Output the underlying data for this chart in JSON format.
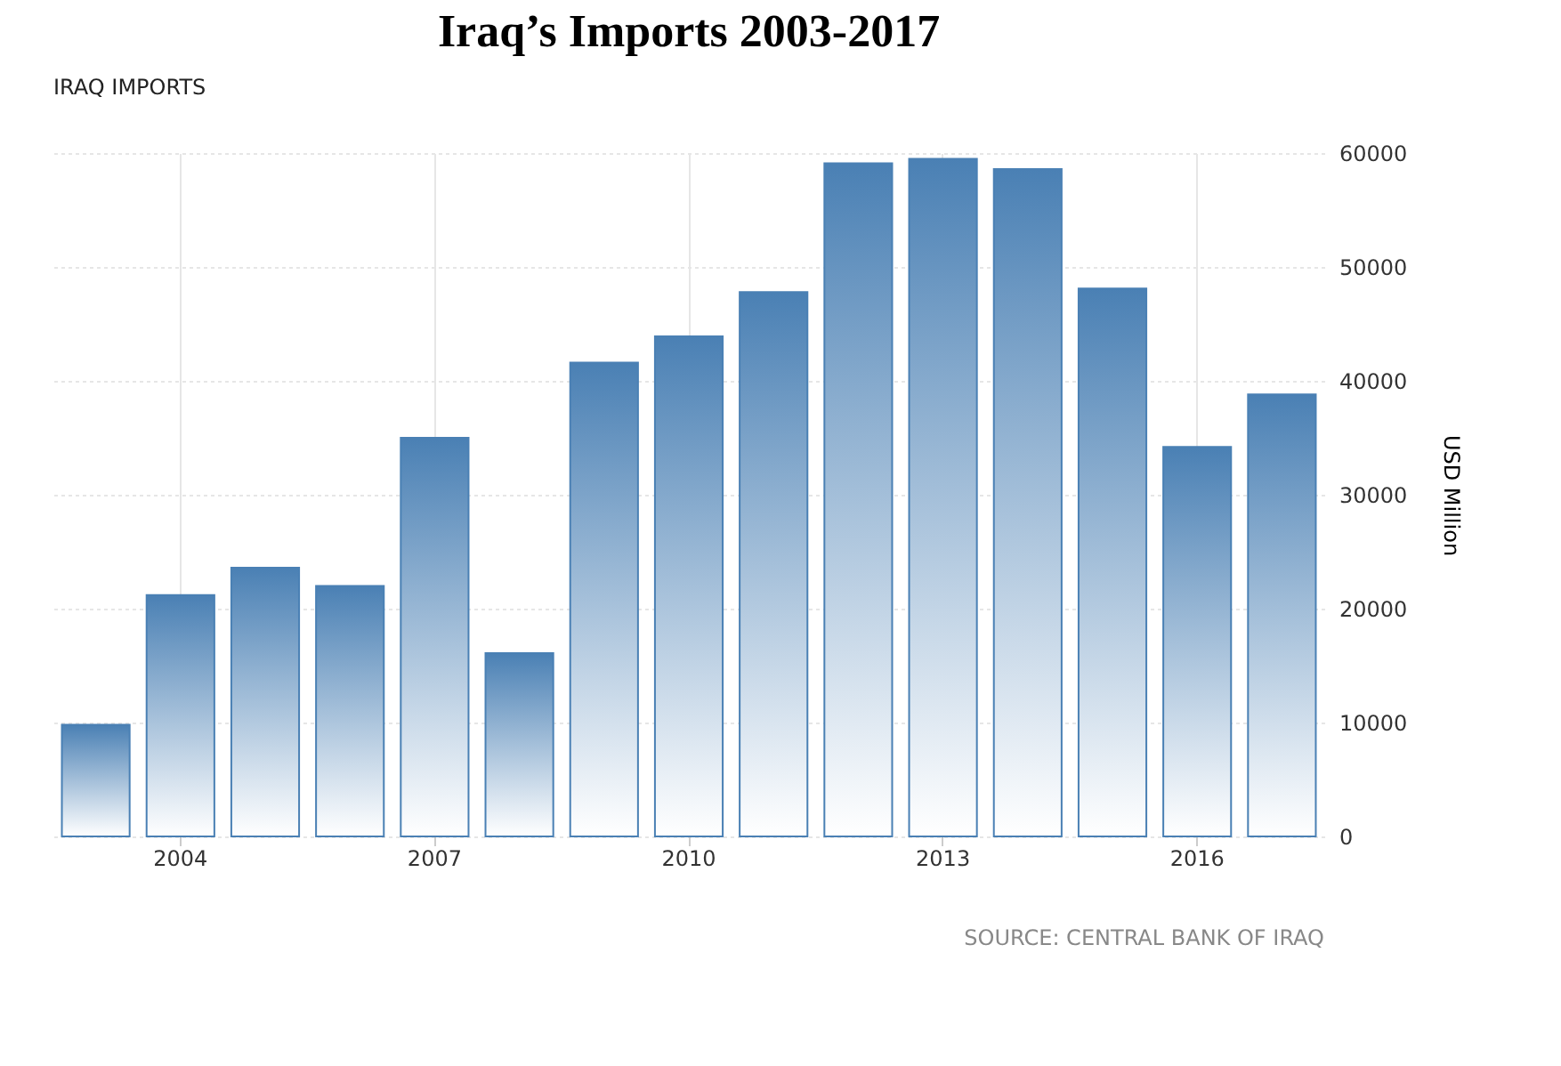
{
  "chart_data": {
    "type": "bar",
    "title": "Iraq’s Imports 2003-2017",
    "subtitle": "IRAQ IMPORTS",
    "ylabel": "USD Million",
    "categories": [
      null,
      "2004",
      null,
      null,
      "2007",
      null,
      null,
      "2010",
      null,
      null,
      "2013",
      null,
      null,
      "2016",
      null
    ],
    "values": [
      9800,
      21200,
      23600,
      22000,
      35000,
      16100,
      41600,
      43900,
      47800,
      59100,
      59500,
      58600,
      48100,
      34200,
      38800
    ],
    "color": "#4a80b4",
    "ylim": [
      0,
      60000
    ],
    "yticks": [
      0,
      10000,
      20000,
      30000,
      40000,
      50000,
      60000
    ],
    "grid": true,
    "annotations": [
      "SOURCE: CENTRAL BANK OF IRAQ"
    ]
  }
}
